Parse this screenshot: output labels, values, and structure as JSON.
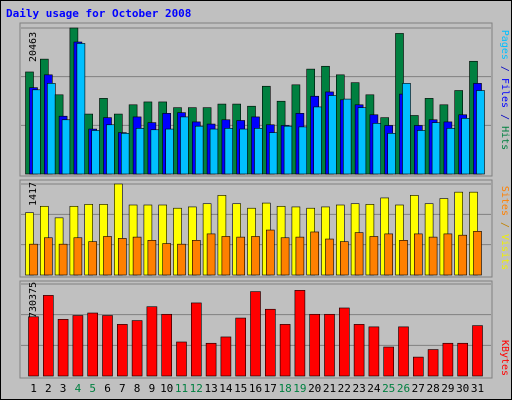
{
  "chart_data": [
    {
      "type": "bar",
      "title": "Daily usage for October 2008",
      "ytick": "20463",
      "ylabel_parts": [
        {
          "text": "Pages",
          "color": "#00c0ff"
        },
        {
          "text": " / ",
          "color": "#0000c0"
        },
        {
          "text": "Files",
          "color": "#0000ff"
        },
        {
          "text": " / ",
          "color": "#0000c0"
        },
        {
          "text": "Hits",
          "color": "#008040"
        }
      ],
      "ymax": 20463,
      "categories": [
        "1",
        "2",
        "3",
        "4",
        "5",
        "6",
        "7",
        "8",
        "9",
        "10",
        "11",
        "12",
        "13",
        "14",
        "15",
        "16",
        "17",
        "18",
        "19",
        "20",
        "21",
        "22",
        "23",
        "24",
        "25",
        "26",
        "27",
        "28",
        "29",
        "30",
        "31"
      ],
      "series": [
        {
          "name": "Hits",
          "color": "#008040",
          "values": [
            14300,
            16100,
            11100,
            20463,
            8400,
            10600,
            8400,
            9700,
            10100,
            10100,
            9300,
            9300,
            9300,
            9800,
            9800,
            9500,
            12300,
            10200,
            12500,
            14700,
            15100,
            13900,
            12800,
            11100,
            7900,
            19700,
            8200,
            10600,
            9700,
            11700,
            15800
          ]
        },
        {
          "name": "Files",
          "color": "#0000ff",
          "values": [
            12100,
            13900,
            8100,
            18500,
            6300,
            7900,
            5800,
            8000,
            7200,
            8500,
            8600,
            7300,
            7000,
            7600,
            7500,
            8000,
            6900,
            6800,
            8500,
            10900,
            11500,
            10400,
            9700,
            8300,
            6800,
            11200,
            6800,
            7600,
            7300,
            8300,
            12700
          ]
        },
        {
          "name": "Pages",
          "color": "#00c0ff",
          "values": [
            11800,
            12700,
            7600,
            18300,
            6100,
            6900,
            5700,
            6400,
            6200,
            6300,
            8000,
            6700,
            6300,
            6400,
            6300,
            6400,
            5800,
            6700,
            6600,
            9400,
            11000,
            10500,
            9300,
            7100,
            5700,
            12700,
            6100,
            7200,
            6400,
            7800,
            11700
          ]
        }
      ]
    },
    {
      "type": "bar",
      "ytick": "1417",
      "ylabel_parts": [
        {
          "text": "Sites",
          "color": "#ff8000"
        },
        {
          "text": " / ",
          "color": "#c08000"
        },
        {
          "text": "Visits",
          "color": "#f0f000"
        }
      ],
      "ymax": 1417,
      "categories": [
        "1",
        "2",
        "3",
        "4",
        "5",
        "6",
        "7",
        "8",
        "9",
        "10",
        "11",
        "12",
        "13",
        "14",
        "15",
        "16",
        "17",
        "18",
        "19",
        "20",
        "21",
        "22",
        "23",
        "24",
        "25",
        "26",
        "27",
        "28",
        "29",
        "30",
        "31"
      ],
      "series": [
        {
          "name": "Visits",
          "color": "#ffff00",
          "values": [
            970,
            1070,
            890,
            1070,
            1100,
            1100,
            1417,
            1090,
            1090,
            1090,
            1040,
            1060,
            1110,
            1240,
            1110,
            1040,
            1120,
            1070,
            1060,
            1040,
            1060,
            1090,
            1110,
            1100,
            1200,
            1090,
            1240,
            1110,
            1190,
            1290,
            1290
          ]
        },
        {
          "name": "Sites",
          "color": "#ff8000",
          "values": [
            480,
            580,
            480,
            580,
            520,
            600,
            570,
            590,
            540,
            490,
            480,
            540,
            640,
            600,
            590,
            600,
            700,
            580,
            590,
            670,
            560,
            520,
            660,
            600,
            640,
            540,
            640,
            590,
            640,
            620,
            680
          ]
        }
      ]
    },
    {
      "type": "bar",
      "ytick": "730375",
      "ylabel_parts": [
        {
          "text": "KBytes",
          "color": "#ff0000"
        }
      ],
      "ymax": 730375,
      "categories": [
        "1",
        "2",
        "3",
        "4",
        "5",
        "6",
        "7",
        "8",
        "9",
        "10",
        "11",
        "12",
        "13",
        "14",
        "15",
        "16",
        "17",
        "18",
        "19",
        "20",
        "21",
        "22",
        "23",
        "24",
        "25",
        "26",
        "27",
        "28",
        "29",
        "30",
        "31"
      ],
      "x_tick_colors": [
        "#000000",
        "#000000",
        "#000000",
        "#008040",
        "#008040",
        "#000000",
        "#000000",
        "#000000",
        "#000000",
        "#000000",
        "#008040",
        "#008040",
        "#000000",
        "#000000",
        "#000000",
        "#000000",
        "#000000",
        "#008040",
        "#008040",
        "#000000",
        "#000000",
        "#000000",
        "#000000",
        "#000000",
        "#008040",
        "#008040",
        "#000000",
        "#000000",
        "#000000",
        "#000000",
        "#000000"
      ],
      "series": [
        {
          "name": "KBytes",
          "color": "#ff0000",
          "values": [
            470000,
            640000,
            450000,
            480000,
            500000,
            480000,
            410000,
            440000,
            550000,
            490000,
            270000,
            580000,
            260000,
            310000,
            460000,
            670000,
            530000,
            410000,
            680000,
            490000,
            490000,
            540000,
            410000,
            390000,
            230000,
            390000,
            150000,
            210000,
            260000,
            260000,
            400000
          ]
        }
      ]
    }
  ]
}
